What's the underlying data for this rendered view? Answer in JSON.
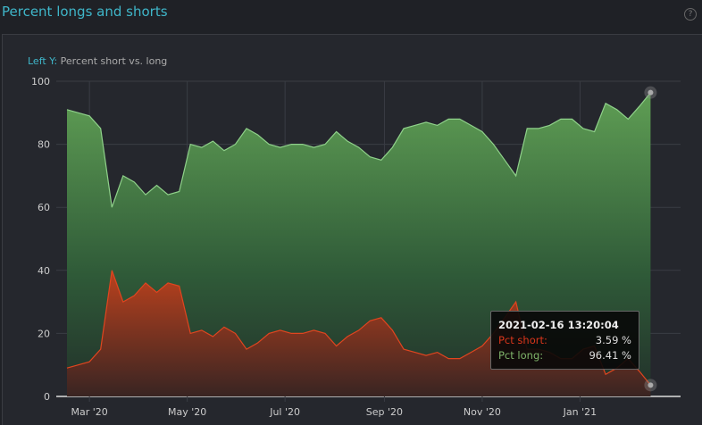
{
  "header": {
    "title": "Percent longs and shorts",
    "help_icon": "question-circle-icon"
  },
  "axis_title": {
    "key": "Left Y:",
    "text": "Percent short vs. long"
  },
  "tooltip": {
    "time": "2021-02-16 13:20:04",
    "short_label": "Pct short:",
    "short_value": "3.59 %",
    "long_label": "Pct long:",
    "long_value": "96.41 %"
  },
  "chart_data": {
    "type": "area",
    "ylim": [
      0,
      100
    ],
    "yticks": [
      "0",
      "20",
      "40",
      "60",
      "80",
      "100"
    ],
    "xlim": [
      "2020-02-16",
      "2021-02-16"
    ],
    "xticks": [
      {
        "label": "Mar '20",
        "date": "2020-03-01"
      },
      {
        "label": "May '20",
        "date": "2020-05-01"
      },
      {
        "label": "Jul '20",
        "date": "2020-07-01"
      },
      {
        "label": "Sep '20",
        "date": "2020-09-01"
      },
      {
        "label": "Nov '20",
        "date": "2020-11-01"
      },
      {
        "label": "Jan '21",
        "date": "2021-01-01"
      }
    ],
    "grid": true,
    "start_date": "2020-02-16",
    "interval_days": 7,
    "colors": {
      "long": "#8fd18a",
      "short": "#e0451f"
    },
    "series": [
      {
        "key": "long",
        "values": [
          91,
          90,
          89,
          85,
          60,
          70,
          68,
          64,
          67,
          64,
          65,
          80,
          79,
          81,
          78,
          80,
          85,
          83,
          80,
          79,
          80,
          80,
          79,
          80,
          84,
          81,
          79,
          76,
          75,
          79,
          85,
          86,
          87,
          86,
          88,
          88,
          86,
          84,
          80,
          75,
          70,
          85,
          85,
          86,
          88,
          88,
          85,
          84,
          93,
          91,
          88,
          92,
          96.41
        ]
      },
      {
        "key": "short",
        "values": [
          9,
          10,
          11,
          15,
          40,
          30,
          32,
          36,
          33,
          36,
          35,
          20,
          21,
          19,
          22,
          20,
          15,
          17,
          20,
          21,
          20,
          20,
          21,
          20,
          16,
          19,
          21,
          24,
          25,
          21,
          15,
          14,
          13,
          14,
          12,
          12,
          14,
          16,
          20,
          25,
          30,
          15,
          15,
          14,
          12,
          12,
          15,
          16,
          7,
          9,
          12,
          8,
          3.59
        ]
      }
    ]
  }
}
